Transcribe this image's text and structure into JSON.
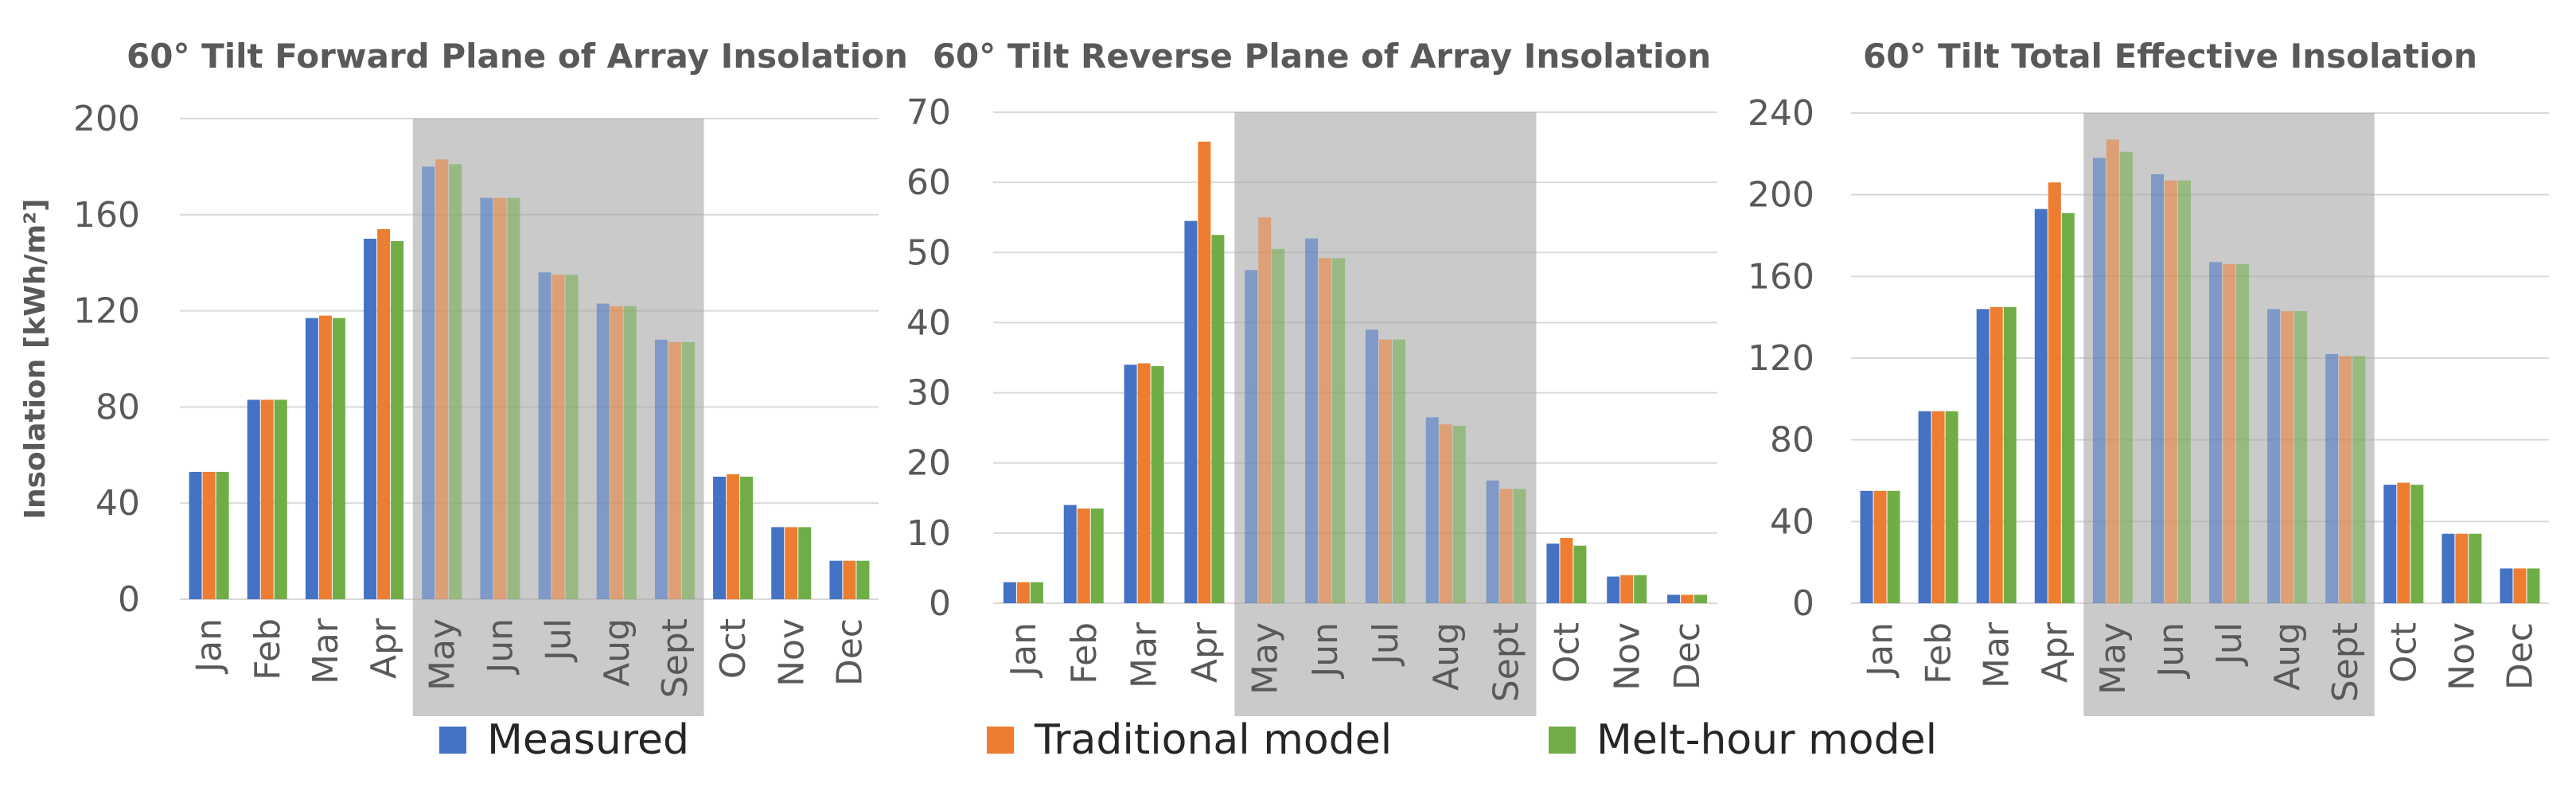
{
  "legend": {
    "measured": "Measured",
    "traditional": "Traditional model",
    "melt_hour": "Melt-hour model"
  },
  "colors": {
    "measured": "#4472C4",
    "traditional": "#ED7D31",
    "melt_hour": "#70AD47",
    "shade": "#A6A6A6"
  },
  "chart_data": [
    {
      "type": "bar",
      "title": "60° Tilt Forward Plane of Array Insolation",
      "ylabel": "Insolation [kWh/m²]",
      "xlabel": "",
      "ylim": [
        0,
        200
      ],
      "yticks": [
        0,
        40,
        80,
        120,
        160,
        200
      ],
      "categories": [
        "Jan",
        "Feb",
        "Mar",
        "Apr",
        "May",
        "Jun",
        "Jul",
        "Aug",
        "Sept",
        "Oct",
        "Nov",
        "Dec"
      ],
      "shaded_categories": [
        "May",
        "Jun",
        "Jul",
        "Aug",
        "Sept"
      ],
      "series": [
        {
          "name": "Measured",
          "values": [
            53,
            83,
            117,
            150,
            180,
            167,
            136,
            123,
            108,
            51,
            30,
            16
          ]
        },
        {
          "name": "Traditional model",
          "values": [
            53,
            83,
            118,
            154,
            183,
            167,
            135,
            122,
            107,
            52,
            30,
            16
          ]
        },
        {
          "name": "Melt-hour model",
          "values": [
            53,
            83,
            117,
            149,
            181,
            167,
            135,
            122,
            107,
            51,
            30,
            16
          ]
        }
      ]
    },
    {
      "type": "bar",
      "title": "60° Tilt Reverse Plane of Array Insolation",
      "ylabel": "",
      "xlabel": "",
      "ylim": [
        0,
        70
      ],
      "yticks": [
        0,
        10,
        20,
        30,
        40,
        50,
        60,
        70
      ],
      "categories": [
        "Jan",
        "Feb",
        "Mar",
        "Apr",
        "May",
        "Jun",
        "Jul",
        "Aug",
        "Sept",
        "Oct",
        "Nov",
        "Dec"
      ],
      "shaded_categories": [
        "May",
        "Jun",
        "Jul",
        "Aug",
        "Sept"
      ],
      "series": [
        {
          "name": "Measured",
          "values": [
            3,
            14,
            34,
            54.5,
            47.5,
            52,
            39,
            26.5,
            17.5,
            8.5,
            3.8,
            1.2
          ]
        },
        {
          "name": "Traditional model",
          "values": [
            3,
            13.5,
            34.2,
            65.8,
            55,
            49.2,
            37.6,
            25.5,
            16.3,
            9.3,
            4,
            1.2
          ]
        },
        {
          "name": "Melt-hour model",
          "values": [
            3,
            13.5,
            33.8,
            52.5,
            50.5,
            49.2,
            37.6,
            25.3,
            16.3,
            8.2,
            4,
            1.2
          ]
        }
      ]
    },
    {
      "type": "bar",
      "title": "60° Tilt Total Effective Insolation",
      "ylabel": "",
      "xlabel": "",
      "ylim": [
        0,
        240
      ],
      "yticks": [
        0,
        40,
        80,
        120,
        160,
        200,
        240
      ],
      "categories": [
        "Jan",
        "Feb",
        "Mar",
        "Apr",
        "May",
        "Jun",
        "Jul",
        "Aug",
        "Sept",
        "Oct",
        "Nov",
        "Dec"
      ],
      "shaded_categories": [
        "May",
        "Jun",
        "Jul",
        "Aug",
        "Sept"
      ],
      "series": [
        {
          "name": "Measured",
          "values": [
            55,
            94,
            144,
            193,
            218,
            210,
            167,
            144,
            122,
            58,
            34,
            17
          ]
        },
        {
          "name": "Traditional model",
          "values": [
            55,
            94,
            145,
            206,
            227,
            207,
            166,
            143,
            121,
            59,
            34,
            17
          ]
        },
        {
          "name": "Melt-hour model",
          "values": [
            55,
            94,
            145,
            191,
            221,
            207,
            166,
            143,
            121,
            58,
            34,
            17
          ]
        }
      ]
    }
  ]
}
